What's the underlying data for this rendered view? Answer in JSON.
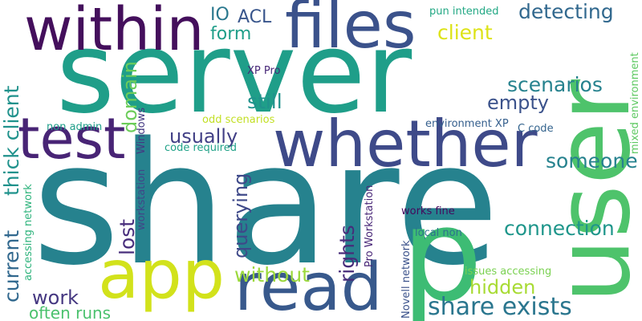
{
  "words": [
    {
      "text": "share",
      "color": "#26828e"
    },
    {
      "text": "server",
      "color": "#1f9e89"
    },
    {
      "text": "user",
      "color": "#4ec36b"
    },
    {
      "text": "p",
      "color": "#3dbc74"
    },
    {
      "text": "within",
      "color": "#440f5c"
    },
    {
      "text": "files",
      "color": "#3b528b"
    },
    {
      "text": "whether",
      "color": "#3e4a89"
    },
    {
      "text": "test",
      "color": "#482475"
    },
    {
      "text": "app",
      "color": "#d2e21b"
    },
    {
      "text": "read",
      "color": "#38598c"
    },
    {
      "text": "IO",
      "color": "#2a788e"
    },
    {
      "text": "ACL",
      "color": "#39568c"
    },
    {
      "text": "form",
      "color": "#1f9e89"
    },
    {
      "text": "detecting",
      "color": "#31688e"
    },
    {
      "text": "client",
      "color": "#dde318"
    },
    {
      "text": "pun intended",
      "color": "#22a884"
    },
    {
      "text": "mixed environment",
      "color": "#5ec962"
    },
    {
      "text": "scenarios",
      "color": "#26828e"
    },
    {
      "text": "empty",
      "color": "#3b528b"
    },
    {
      "text": "still",
      "color": "#20928c"
    },
    {
      "text": "XP Pro",
      "color": "#482878"
    },
    {
      "text": "domain",
      "color": "#6ccd5a"
    },
    {
      "text": "thick client",
      "color": "#20928c"
    },
    {
      "text": "usually",
      "color": "#424086"
    },
    {
      "text": "odd scenarios",
      "color": "#c2df23"
    },
    {
      "text": "Windows",
      "color": "#443983"
    },
    {
      "text": "environment XP",
      "color": "#355f8d"
    },
    {
      "text": "C code",
      "color": "#33638d"
    },
    {
      "text": "non admin",
      "color": "#1f9e89"
    },
    {
      "text": "code required",
      "color": "#1fa187"
    },
    {
      "text": "someone",
      "color": "#26828e"
    },
    {
      "text": "workstation",
      "color": "#404688"
    },
    {
      "text": "lost",
      "color": "#472d7b"
    },
    {
      "text": "querying",
      "color": "#3e4989"
    },
    {
      "text": "accessing network",
      "color": "#2eb37c"
    },
    {
      "text": "rights",
      "color": "#472c7a"
    },
    {
      "text": "Pro Workstation",
      "color": "#482677"
    },
    {
      "text": "connection",
      "color": "#1f968b"
    },
    {
      "text": "works fine",
      "color": "#46085c"
    },
    {
      "text": "local non",
      "color": "#2c728e"
    },
    {
      "text": "current",
      "color": "#31688e"
    },
    {
      "text": "without",
      "color": "#9bd93c"
    },
    {
      "text": "hidden",
      "color": "#a8db34"
    },
    {
      "text": "Novell network",
      "color": "#3b528b"
    },
    {
      "text": "issues accessing",
      "color": "#7ad151"
    },
    {
      "text": "work",
      "color": "#453781"
    },
    {
      "text": "often runs",
      "color": "#4ac16d"
    },
    {
      "text": "share exists",
      "color": "#2a768e"
    }
  ]
}
